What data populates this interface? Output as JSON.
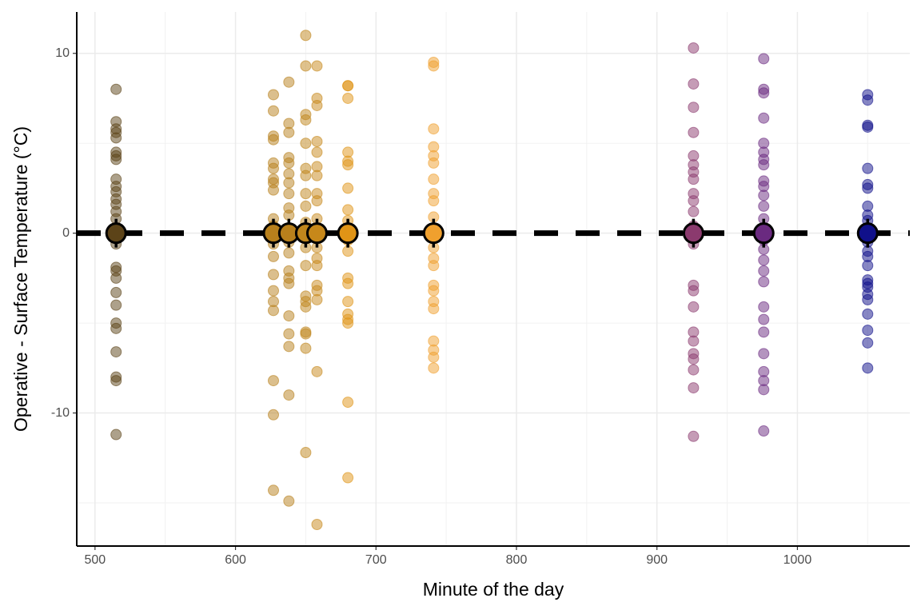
{
  "chart_data": {
    "type": "scatter",
    "x_label": "Minute of the day",
    "y_label": "Operative - Surface Temperature (°C)",
    "xlim": [
      487,
      1080
    ],
    "ylim": [
      -17.4,
      12.3
    ],
    "xticks": [
      500,
      600,
      700,
      800,
      900,
      1000
    ],
    "yticks": [
      -10,
      0,
      10
    ],
    "minor_xticks": [
      550,
      650,
      750,
      850,
      950,
      1050
    ],
    "minor_yticks": [
      -15,
      -5,
      5
    ],
    "grid": true,
    "hline": 0,
    "series": [
      {
        "color": "#5c4318",
        "x": 515,
        "mean": 0,
        "error": 0.8,
        "values": [
          8.0,
          6.2,
          5.8,
          5.6,
          5.3,
          4.5,
          4.3,
          4.1,
          3.0,
          2.6,
          2.3,
          1.9,
          1.6,
          1.2,
          0.8,
          -0.2,
          -0.6,
          -1.9,
          -2.1,
          -2.5,
          -3.3,
          -4.0,
          -5.0,
          -5.3,
          -6.6,
          -8.0,
          -8.2,
          -11.2
        ]
      },
      {
        "color": "#b8801c",
        "x": 627,
        "mean": 0,
        "error": 0.8,
        "values": [
          7.7,
          6.8,
          5.4,
          5.2,
          3.9,
          3.6,
          3.0,
          2.8,
          2.4,
          0.8,
          0.4,
          -0.6,
          -1.3,
          -2.3,
          -3.2,
          -3.8,
          -4.3,
          -8.2,
          -10.1,
          -14.3
        ]
      },
      {
        "color": "#b8801c",
        "x": 638,
        "mean": 0,
        "error": 0.8,
        "values": [
          8.4,
          6.1,
          5.6,
          4.2,
          3.9,
          3.3,
          2.8,
          2.2,
          1.4,
          1.0,
          -0.5,
          -1.1,
          -2.1,
          -2.5,
          -2.8,
          -4.6,
          -5.6,
          -6.3,
          -9.0,
          -14.9
        ]
      },
      {
        "color": "#c0861c",
        "x": 650,
        "mean": 0,
        "error": 0.8,
        "values": [
          11.0,
          9.3,
          6.6,
          6.3,
          5.0,
          3.6,
          3.2,
          2.2,
          1.5,
          0.6,
          -0.8,
          -1.8,
          -3.5,
          -3.8,
          -4.1,
          -5.5,
          -5.6,
          -6.4,
          -12.2
        ]
      },
      {
        "color": "#c7881a",
        "x": 658,
        "mean": 0,
        "error": 0.8,
        "values": [
          9.3,
          7.5,
          7.1,
          5.1,
          4.5,
          3.7,
          3.2,
          2.2,
          1.8,
          0.8,
          -0.8,
          -1.4,
          -1.8,
          -2.9,
          -3.2,
          -3.7,
          -7.7,
          -16.2
        ]
      },
      {
        "color": "#e09416",
        "x": 680,
        "mean": 0,
        "error": 0.8,
        "values": [
          8.2,
          8.2,
          7.5,
          4.5,
          4.0,
          3.8,
          2.5,
          1.3,
          0.7,
          -0.4,
          -1.0,
          -2.5,
          -2.8,
          -3.8,
          -4.5,
          -4.8,
          -5.0,
          -9.4,
          -13.6
        ]
      },
      {
        "color": "#f0a02e",
        "x": 741,
        "mean": 0,
        "error": 0.8,
        "values": [
          9.5,
          9.3,
          5.8,
          4.8,
          4.3,
          3.9,
          3.0,
          2.2,
          1.8,
          0.9,
          -0.2,
          -0.8,
          -1.4,
          -1.8,
          -2.9,
          -3.2,
          -3.8,
          -4.2,
          -6.0,
          -6.5,
          -6.9,
          -7.5
        ]
      },
      {
        "color": "#8b3a6e",
        "x": 926,
        "mean": 0,
        "error": 0.8,
        "values": [
          10.3,
          8.3,
          7.0,
          5.6,
          4.3,
          3.8,
          3.4,
          3.0,
          2.2,
          1.8,
          1.2,
          0.4,
          -0.6,
          -2.9,
          -3.2,
          -4.1,
          -5.5,
          -6.0,
          -6.7,
          -7.0,
          -7.6,
          -8.6,
          -11.3
        ]
      },
      {
        "color": "#6a2a80",
        "x": 976,
        "mean": 0,
        "error": 0.8,
        "values": [
          9.7,
          8.0,
          7.8,
          6.4,
          5.0,
          4.5,
          4.1,
          3.8,
          2.9,
          2.6,
          2.1,
          1.5,
          0.8,
          -0.4,
          -0.9,
          -1.5,
          -2.1,
          -2.7,
          -4.1,
          -4.8,
          -5.5,
          -6.7,
          -7.7,
          -8.2,
          -8.7,
          -11.0
        ]
      },
      {
        "color": "#10108a",
        "x": 1050,
        "mean": 0,
        "error": 0.8,
        "values": [
          7.7,
          7.4,
          6.0,
          5.9,
          3.6,
          2.7,
          2.5,
          1.5,
          1.0,
          0.7,
          0.2,
          -0.5,
          -1.0,
          -1.3,
          -1.8,
          -2.6,
          -2.8,
          -3.0,
          -3.4,
          -3.7,
          -4.5,
          -5.4,
          -6.1,
          -7.5
        ]
      }
    ]
  }
}
